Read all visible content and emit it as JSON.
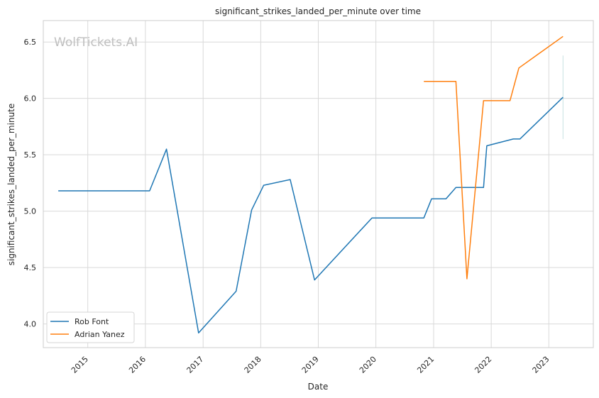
{
  "chart_data": {
    "type": "line",
    "title": "significant_strikes_landed_per_minute over time",
    "xlabel": "Date",
    "ylabel": "significant_strikes_landed_per_minute",
    "watermark": "WolfTickets.AI",
    "xlim": [
      "2014-03-25",
      "2023-10-10"
    ],
    "ylim": [
      3.79,
      6.69
    ],
    "x_ticks": [
      "2015-01-01",
      "2016-01-01",
      "2017-01-01",
      "2018-01-01",
      "2019-01-01",
      "2020-01-01",
      "2021-01-01",
      "2022-01-01",
      "2023-01-01"
    ],
    "x_tick_labels": [
      "2015",
      "2016",
      "2017",
      "2018",
      "2019",
      "2020",
      "2021",
      "2022",
      "2023"
    ],
    "y_ticks": [
      4.0,
      4.5,
      5.0,
      5.5,
      6.0,
      6.5
    ],
    "y_tick_labels": [
      "4.0",
      "4.5",
      "5.0",
      "5.5",
      "6.0",
      "6.5"
    ],
    "grid": true,
    "legend_position": "lower-left",
    "series": [
      {
        "name": "Rob Font",
        "color": "#1f77b4",
        "points": [
          [
            "2014-06-28",
            5.18
          ],
          [
            "2016-01-28",
            5.18
          ],
          [
            "2016-05-14",
            5.55
          ],
          [
            "2016-12-03",
            3.92
          ],
          [
            "2017-07-29",
            4.29
          ],
          [
            "2017-11-04",
            5.01
          ],
          [
            "2018-01-20",
            5.23
          ],
          [
            "2018-07-07",
            5.28
          ],
          [
            "2018-12-08",
            4.39
          ],
          [
            "2019-12-07",
            4.94
          ],
          [
            "2020-10-31",
            4.94
          ],
          [
            "2020-12-19",
            5.11
          ],
          [
            "2021-03-20",
            5.11
          ],
          [
            "2021-05-22",
            5.21
          ],
          [
            "2021-11-13",
            5.21
          ],
          [
            "2021-12-04",
            5.58
          ],
          [
            "2022-05-21",
            5.64
          ],
          [
            "2022-07-02",
            5.64
          ],
          [
            "2023-04-01",
            6.01
          ]
        ]
      },
      {
        "name": "Adrian Yanez",
        "color": "#ff7f0e",
        "points": [
          [
            "2020-10-31",
            6.15
          ],
          [
            "2021-05-22",
            6.15
          ],
          [
            "2021-07-31",
            4.4
          ],
          [
            "2021-11-13",
            5.98
          ],
          [
            "2022-04-30",
            5.98
          ],
          [
            "2022-06-25",
            6.27
          ],
          [
            "2023-04-01",
            6.55
          ]
        ]
      }
    ],
    "annotations": [
      {
        "type": "vertical-band",
        "x": "2023-04-01",
        "y_range": [
          5.64,
          6.38
        ],
        "color": "#5fa8a8"
      }
    ]
  }
}
